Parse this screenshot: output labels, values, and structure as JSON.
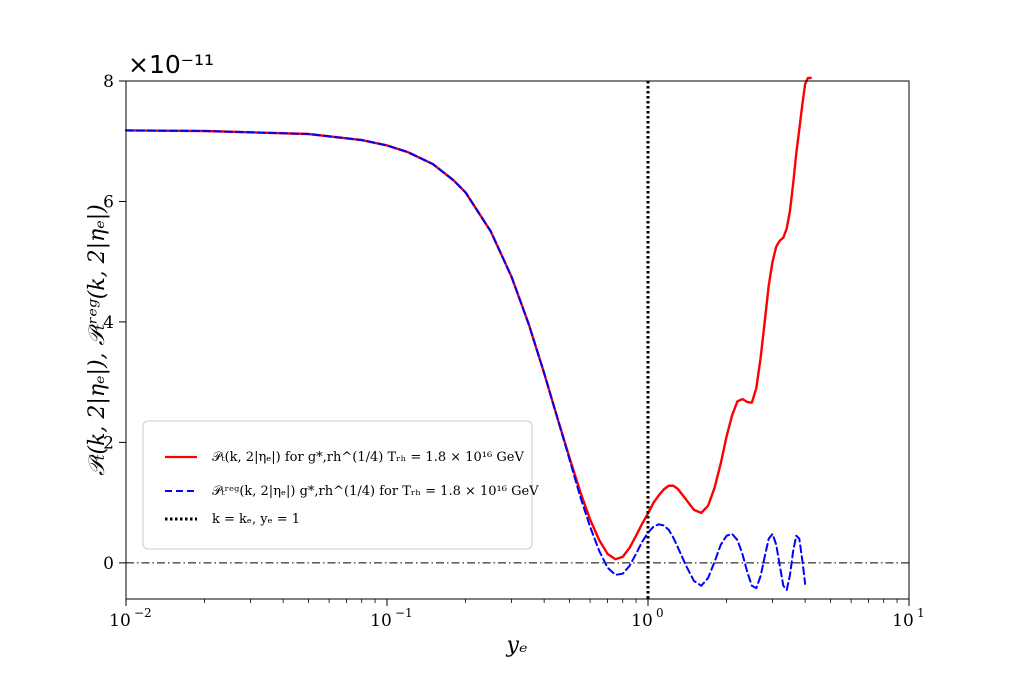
{
  "chart_data": {
    "type": "line",
    "xscale": "log",
    "xlim": [
      0.01,
      10
    ],
    "ylim": [
      -0.6,
      8
    ],
    "y_multiplier_label": "×10⁻¹¹",
    "xlabel": "yₑ",
    "ylabel": "𝒫ₜ(k, 2|ηₑ|), 𝒫ₜʳᵉᵍ(k, 2|ηₑ|)",
    "x_ticks": [
      {
        "value": 0.01,
        "base": "10",
        "exp": "−2"
      },
      {
        "value": 0.1,
        "base": "10",
        "exp": "−1"
      },
      {
        "value": 1,
        "base": "10",
        "exp": "0"
      },
      {
        "value": 10,
        "base": "10",
        "exp": "1"
      }
    ],
    "y_ticks": [
      {
        "value": 0,
        "label": "0"
      },
      {
        "value": 2,
        "label": "2"
      },
      {
        "value": 4,
        "label": "4"
      },
      {
        "value": 6,
        "label": "6"
      },
      {
        "value": 8,
        "label": "8"
      }
    ],
    "grid": false,
    "legend_position": "lower-left",
    "series": [
      {
        "name": "𝒫ₜ(k, 2|ηₑ|) for g*,rh^(1/4) Tᵣₕ = 1.8 × 10¹⁶ GeV",
        "color": "#ff0000",
        "style": "solid",
        "x": [
          0.01,
          0.02,
          0.05,
          0.08,
          0.1,
          0.12,
          0.15,
          0.18,
          0.2,
          0.25,
          0.3,
          0.35,
          0.4,
          0.45,
          0.5,
          0.55,
          0.6,
          0.65,
          0.7,
          0.75,
          0.8,
          0.85,
          0.9,
          0.95,
          1.0,
          1.05,
          1.1,
          1.15,
          1.2,
          1.25,
          1.3,
          1.4,
          1.5,
          1.6,
          1.7,
          1.8,
          1.9,
          2.0,
          2.1,
          2.2,
          2.3,
          2.4,
          2.5,
          2.6,
          2.7,
          2.8,
          2.9,
          3.0,
          3.1,
          3.2,
          3.3,
          3.4,
          3.5,
          3.6,
          3.7,
          3.8,
          3.9,
          4.0,
          4.1,
          4.2
        ],
        "y": [
          7.18,
          7.17,
          7.12,
          7.02,
          6.93,
          6.82,
          6.62,
          6.35,
          6.15,
          5.5,
          4.75,
          3.95,
          3.15,
          2.4,
          1.75,
          1.18,
          0.72,
          0.38,
          0.15,
          0.06,
          0.1,
          0.25,
          0.45,
          0.65,
          0.82,
          1.0,
          1.12,
          1.22,
          1.28,
          1.28,
          1.23,
          1.05,
          0.88,
          0.83,
          0.95,
          1.25,
          1.65,
          2.1,
          2.45,
          2.68,
          2.72,
          2.67,
          2.66,
          2.9,
          3.4,
          4.0,
          4.6,
          5.0,
          5.25,
          5.35,
          5.4,
          5.55,
          5.85,
          6.3,
          6.8,
          7.2,
          7.6,
          7.95,
          8.3,
          8.6
        ]
      },
      {
        "name": "𝒫ₜʳᵉᵍ(k, 2|ηₑ|) g*,rh^(1/4) for Tᵣₕ = 1.8 × 10¹⁶ GeV",
        "color": "#0000ff",
        "style": "dashed",
        "x": [
          0.01,
          0.02,
          0.05,
          0.08,
          0.1,
          0.12,
          0.15,
          0.18,
          0.2,
          0.25,
          0.3,
          0.35,
          0.4,
          0.45,
          0.5,
          0.55,
          0.6,
          0.65,
          0.7,
          0.75,
          0.8,
          0.85,
          0.9,
          0.95,
          1.0,
          1.05,
          1.1,
          1.15,
          1.2,
          1.25,
          1.3,
          1.4,
          1.5,
          1.6,
          1.7,
          1.8,
          1.9,
          2.0,
          2.1,
          2.2,
          2.3,
          2.4,
          2.5,
          2.6,
          2.7,
          2.8,
          2.9,
          3.0,
          3.1,
          3.2,
          3.3,
          3.4,
          3.5,
          3.6,
          3.7,
          3.8,
          3.9,
          4.0
        ],
        "y": [
          7.18,
          7.17,
          7.12,
          7.02,
          6.93,
          6.82,
          6.62,
          6.35,
          6.15,
          5.5,
          4.75,
          3.95,
          3.15,
          2.4,
          1.72,
          1.1,
          0.6,
          0.2,
          -0.08,
          -0.2,
          -0.18,
          -0.05,
          0.15,
          0.35,
          0.5,
          0.6,
          0.64,
          0.62,
          0.55,
          0.42,
          0.26,
          -0.05,
          -0.3,
          -0.38,
          -0.25,
          0.02,
          0.3,
          0.45,
          0.48,
          0.38,
          0.15,
          -0.15,
          -0.38,
          -0.42,
          -0.22,
          0.1,
          0.4,
          0.48,
          0.3,
          -0.05,
          -0.38,
          -0.45,
          -0.2,
          0.2,
          0.45,
          0.4,
          0.05,
          -0.35
        ]
      },
      {
        "name": "k = kₑ, yₑ = 1",
        "color": "#000000",
        "style": "dotted",
        "vline_x": 1
      }
    ],
    "reference_line": {
      "y": 0,
      "style": "dashdot",
      "color": "#000000"
    }
  },
  "legend": {
    "entries": [
      {
        "label": "𝒫ₜ(k, 2|ηₑ|) for g*,rh^(1/4) Tᵣₕ = 1.8 × 10¹⁶ GeV",
        "color": "#ff0000",
        "style": "solid"
      },
      {
        "label": "𝒫ₜʳᵉᵍ(k, 2|ηₑ|) g*,rh^(1/4) for Tᵣₕ = 1.8 × 10¹⁶ GeV",
        "color": "#0000ff",
        "style": "dashed"
      },
      {
        "label": "k = kₑ, yₑ = 1",
        "color": "#000000",
        "style": "dotted"
      }
    ]
  }
}
